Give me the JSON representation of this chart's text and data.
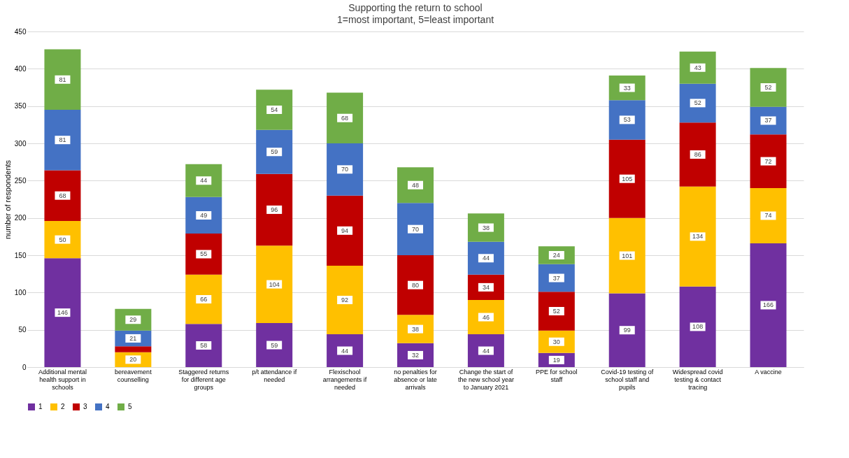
{
  "chart_data": {
    "type": "bar",
    "stacked": true,
    "title": "Supporting the return to school",
    "subtitle": "1=most important, 5=least important",
    "ylabel": "number of respondents",
    "categories": [
      "Additional mental health support in schools",
      "bereavement counselling",
      "Staggered returns for different age groups",
      "p/t attendance if needed",
      "Flexischool arrangements if needed",
      "no penalties for absence or late arrivals",
      "Change the start of the new school year to January 2021",
      "PPE for school staff",
      "Covid-19 testing of school staff and pupils",
      "Widespread covid testing & contact tracing",
      "A vaccine"
    ],
    "ylim": [
      0,
      450
    ],
    "yticks": [
      0,
      50,
      100,
      150,
      200,
      250,
      300,
      350,
      400,
      450
    ],
    "grid": "y",
    "legend": "bottom",
    "series": [
      {
        "name": "1",
        "color": "#7030a0",
        "values": [
          146,
          0,
          58,
          59,
          44,
          32,
          44,
          19,
          99,
          108,
          166
        ],
        "value_labels": [
          "146",
          null,
          "58",
          "59",
          "44",
          "32",
          "44",
          "19",
          "99",
          "108",
          "166"
        ]
      },
      {
        "name": "2",
        "color": "#ffc000",
        "values": [
          50,
          20,
          66,
          104,
          92,
          38,
          46,
          30,
          101,
          134,
          74
        ],
        "value_labels": [
          "50",
          "20",
          "66",
          "104",
          "92",
          "38",
          "46",
          "30",
          "101",
          "134",
          "74"
        ]
      },
      {
        "name": "3",
        "color": "#c00000",
        "values": [
          68,
          8,
          55,
          96,
          94,
          80,
          34,
          52,
          105,
          86,
          72
        ],
        "value_labels": [
          "68",
          null,
          "55",
          "96",
          "94",
          "80",
          "34",
          "52",
          "105",
          "86",
          "72"
        ]
      },
      {
        "name": "4",
        "color": "#4472c4",
        "values": [
          81,
          21,
          49,
          59,
          70,
          70,
          44,
          37,
          53,
          52,
          37
        ],
        "value_labels": [
          "81",
          "21",
          "49",
          "59",
          "70",
          "70",
          "44",
          "37",
          "53",
          "52",
          "37"
        ]
      },
      {
        "name": "5",
        "color": "#70ad47",
        "values": [
          81,
          29,
          44,
          54,
          68,
          48,
          38,
          24,
          33,
          43,
          52
        ],
        "value_labels": [
          "81",
          "29",
          "44",
          "54",
          "68",
          "48",
          "38",
          "24",
          "33",
          "43",
          "52"
        ]
      }
    ]
  }
}
